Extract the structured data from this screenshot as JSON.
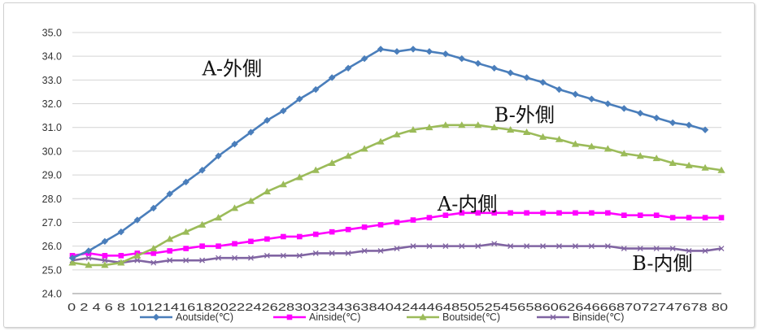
{
  "chart_data": {
    "type": "line",
    "title": "",
    "xlabel": "",
    "ylabel": "",
    "ylim": [
      24.0,
      35.0
    ],
    "y_ticks": [
      "24.0",
      "25.0",
      "26.0",
      "27.0",
      "28.0",
      "29.0",
      "30.0",
      "31.0",
      "32.0",
      "33.0",
      "34.0",
      "35.0"
    ],
    "x": [
      0,
      2,
      4,
      6,
      8,
      10,
      12,
      14,
      16,
      18,
      20,
      22,
      24,
      26,
      28,
      30,
      32,
      34,
      36,
      38,
      40,
      42,
      44,
      46,
      48,
      50,
      52,
      54,
      56,
      58,
      60,
      62,
      64,
      66,
      68,
      70,
      72,
      74,
      76,
      78,
      80
    ],
    "x_tick_text": "0 2 4 6 8 1012141618202224262830323436384042444648505254565860626466687072747678 80",
    "grid": true,
    "legend_position": "bottom",
    "series": [
      {
        "name": "Aoutside(℃)",
        "color": "#4a7ebb",
        "marker": "diamond",
        "x": [
          0,
          2,
          4,
          6,
          8,
          10,
          12,
          14,
          16,
          18,
          20,
          22,
          24,
          26,
          28,
          30,
          32,
          34,
          36,
          38,
          40,
          42,
          44,
          46,
          48,
          50,
          52,
          54,
          56,
          58,
          60,
          62,
          64,
          66,
          68,
          70,
          72,
          74,
          76,
          78
        ],
        "values": [
          25.5,
          25.8,
          26.2,
          26.6,
          27.1,
          27.6,
          28.2,
          28.7,
          29.2,
          29.8,
          30.3,
          30.8,
          31.3,
          31.7,
          32.2,
          32.6,
          33.1,
          33.5,
          33.9,
          34.3,
          34.2,
          34.3,
          34.2,
          34.1,
          33.9,
          33.7,
          33.5,
          33.3,
          33.1,
          32.9,
          32.6,
          32.4,
          32.2,
          32.0,
          31.8,
          31.6,
          31.4,
          31.2,
          31.1,
          30.9
        ]
      },
      {
        "name": "Ainside(℃)",
        "color": "#ff00ff",
        "marker": "square",
        "values": [
          25.6,
          25.7,
          25.6,
          25.6,
          25.7,
          25.7,
          25.8,
          25.9,
          26.0,
          26.0,
          26.1,
          26.2,
          26.3,
          26.4,
          26.4,
          26.5,
          26.6,
          26.7,
          26.8,
          26.9,
          27.0,
          27.1,
          27.2,
          27.3,
          27.4,
          27.4,
          27.4,
          27.4,
          27.4,
          27.4,
          27.4,
          27.4,
          27.4,
          27.4,
          27.3,
          27.3,
          27.3,
          27.2,
          27.2,
          27.2,
          27.2
        ]
      },
      {
        "name": "Boutside(℃)",
        "color": "#9bbb59",
        "marker": "triangle",
        "values": [
          25.3,
          25.2,
          25.2,
          25.3,
          25.6,
          25.9,
          26.3,
          26.6,
          26.9,
          27.2,
          27.6,
          27.9,
          28.3,
          28.6,
          28.9,
          29.2,
          29.5,
          29.8,
          30.1,
          30.4,
          30.7,
          30.9,
          31.0,
          31.1,
          31.1,
          31.1,
          31.0,
          30.9,
          30.8,
          30.6,
          30.5,
          30.3,
          30.2,
          30.1,
          29.9,
          29.8,
          29.7,
          29.5,
          29.4,
          29.3,
          29.2
        ]
      },
      {
        "name": "Binside(℃)",
        "color": "#8064a2",
        "marker": "x",
        "values": [
          25.4,
          25.5,
          25.4,
          25.3,
          25.4,
          25.3,
          25.4,
          25.4,
          25.4,
          25.5,
          25.5,
          25.5,
          25.6,
          25.6,
          25.6,
          25.7,
          25.7,
          25.7,
          25.8,
          25.8,
          25.9,
          26.0,
          26.0,
          26.0,
          26.0,
          26.0,
          26.1,
          26.0,
          26.0,
          26.0,
          26.0,
          26.0,
          26.0,
          26.0,
          25.9,
          25.9,
          25.9,
          25.9,
          25.8,
          25.8,
          25.9
        ]
      }
    ],
    "annotations": [
      {
        "text": "A-外側",
        "x": 16,
        "y": 33.2
      },
      {
        "text": "B-外側",
        "x": 52,
        "y": 31.25
      },
      {
        "text": "A-内側",
        "x": 45,
        "y": 27.5
      },
      {
        "text": "B-内側",
        "x": 69,
        "y": 25.0
      }
    ]
  }
}
